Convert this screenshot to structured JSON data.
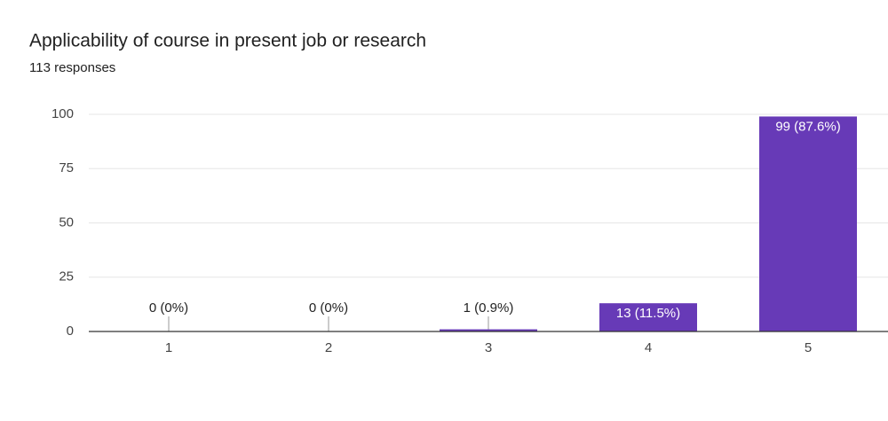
{
  "chart_data": {
    "type": "bar",
    "title": "Applicability of course in present job or research",
    "subtitle": "113 responses",
    "categories": [
      "1",
      "2",
      "3",
      "4",
      "5"
    ],
    "values": [
      0,
      0,
      1,
      13,
      99
    ],
    "value_labels": [
      "0 (0%)",
      "0 (0%)",
      "1 (0.9%)",
      "13 (11.5%)",
      "99 (87.6%)"
    ],
    "color": "#673ab7",
    "ylim": [
      0,
      100
    ],
    "yticks": [
      0,
      25,
      50,
      75,
      100
    ],
    "grid": true
  }
}
